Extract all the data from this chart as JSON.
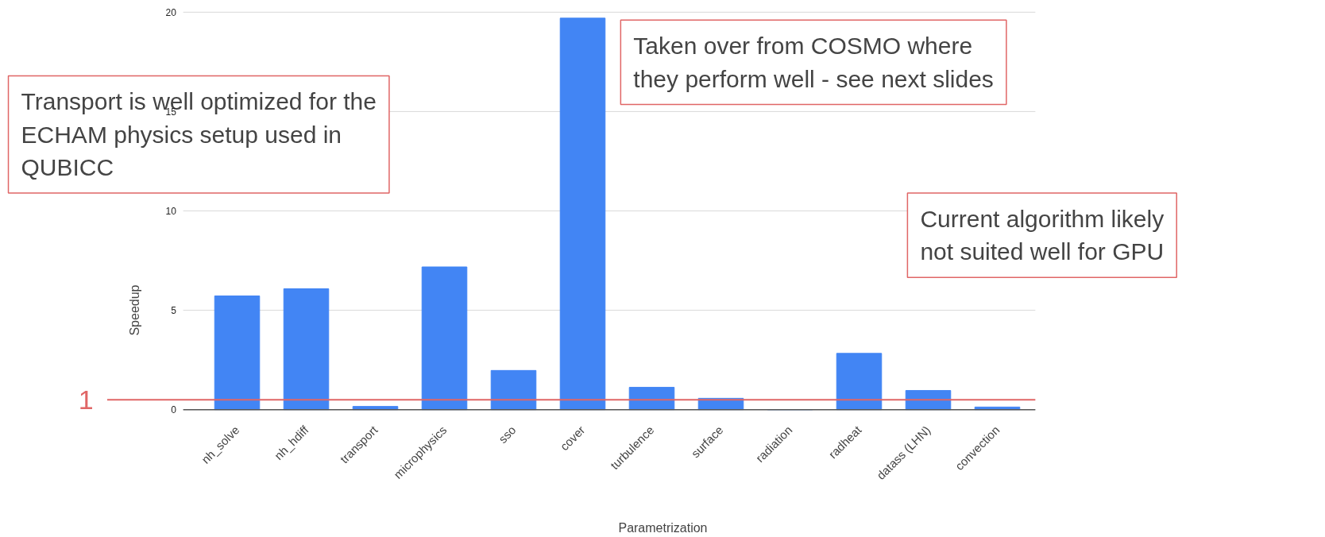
{
  "chart_data": {
    "type": "bar",
    "xlabel": "Parametrization",
    "ylabel": "Speedup",
    "categories": [
      "nh_solve",
      "nh_hdiff",
      "transport",
      "microphysics",
      "sso",
      "cover",
      "turbulence",
      "surface",
      "radiation",
      "radheat",
      "datass (LHN)",
      "convection"
    ],
    "values": [
      5.72,
      6.08,
      0.16,
      7.18,
      1.97,
      19.7,
      1.12,
      0.57,
      0,
      2.83,
      0.96,
      0.13
    ],
    "color": "#4285f4",
    "ylim": [
      0,
      20
    ],
    "yticks": [
      0,
      5,
      10,
      15,
      20
    ],
    "grid": "y",
    "ref_lines": [
      {
        "axis": "y",
        "value": 0.5,
        "label": "1",
        "color": "#e06666"
      }
    ],
    "annotations": [
      "Transport is well optimized for the\nECHAM physics setup used in\nQUBICC",
      "Taken over from COSMO where\nthey perform well - see next slides",
      "Current algorithm likely\nnot suited well for GPU"
    ]
  }
}
